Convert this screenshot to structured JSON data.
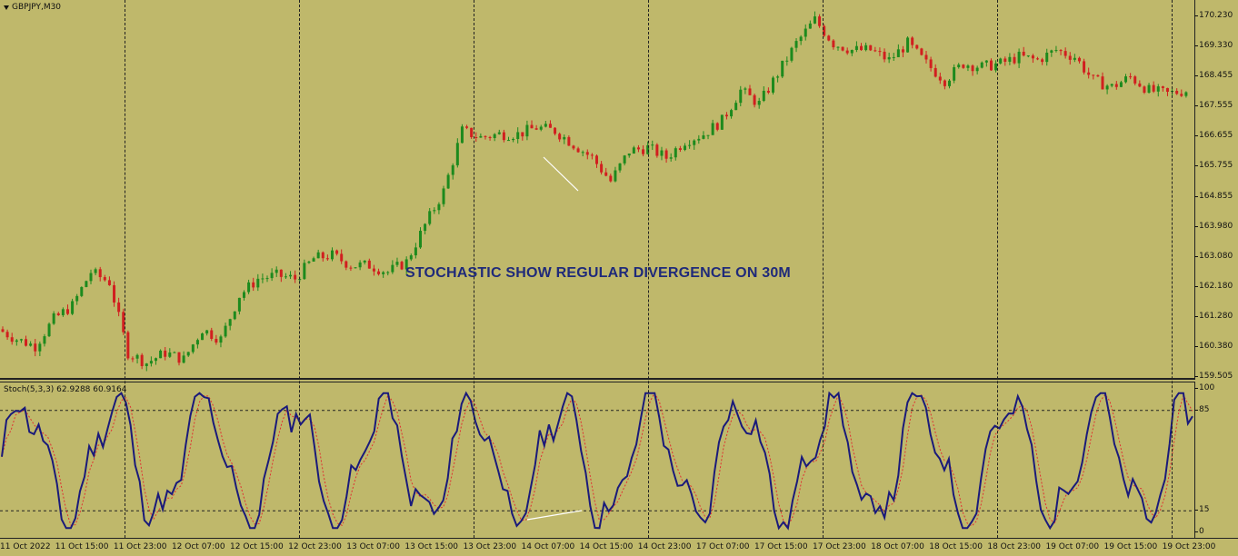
{
  "main_chart": {
    "symbol_label": "GBPJPY,M30",
    "annotation": "STOCHASTIC SHOW REGULAR DIVERGENCE ON 30M",
    "price_ticks": [
      "170.230",
      "169.330",
      "168.455",
      "167.555",
      "166.655",
      "165.755",
      "164.855",
      "163.980",
      "163.080",
      "162.180",
      "161.280",
      "160.380",
      "159.505"
    ],
    "bull_color": "#1d8a1d",
    "bear_color": "#d11f1f"
  },
  "stochastic": {
    "title": "Stoch(5,3,3) 62.9288 60.9164",
    "scale_ticks": [
      "100",
      "85",
      "15",
      "0"
    ],
    "main_line_color": "#1a1a7a",
    "signal_line_color": "#e03030"
  },
  "time_axis": {
    "labels": [
      "11 Oct 2022",
      "11 Oct 15:00",
      "11 Oct 23:00",
      "12 Oct 07:00",
      "12 Oct 15:00",
      "12 Oct 23:00",
      "13 Oct 07:00",
      "13 Oct 15:00",
      "13 Oct 23:00",
      "14 Oct 07:00",
      "14 Oct 15:00",
      "14 Oct 23:00",
      "17 Oct 07:00",
      "17 Oct 15:00",
      "17 Oct 23:00",
      "18 Oct 07:00",
      "18 Oct 15:00",
      "18 Oct 23:00",
      "19 Oct 07:00",
      "19 Oct 15:00",
      "19 Oct 23:00"
    ]
  },
  "chart_data": {
    "type": "line",
    "series": [
      {
        "values": [
          160.9,
          160.6,
          160.4,
          161.2,
          161.6,
          162.6,
          162.3,
          160.2,
          159.9,
          160.2,
          160.0,
          160.9,
          160.6,
          161.9,
          162.4,
          162.5,
          162.4,
          163.0,
          163.1,
          162.8,
          162.8,
          162.6,
          162.9,
          164.0,
          165.0,
          166.8,
          166.6,
          166.7,
          166.7,
          166.9,
          166.8,
          166.4,
          166.0,
          165.3,
          166.2,
          166.3,
          166.0,
          166.5,
          166.7,
          167.1,
          168.0,
          167.6,
          168.5,
          169.4,
          170.1,
          169.4,
          169.2,
          169.2,
          168.9,
          169.4,
          168.8,
          168.3,
          168.8,
          168.7,
          168.8,
          169.0,
          168.9,
          169.2,
          169.0,
          168.3,
          168.1,
          168.4,
          168.0,
          167.9,
          168.0
        ]
      }
    ],
    "ylim": [
      159.505,
      170.23
    ]
  }
}
